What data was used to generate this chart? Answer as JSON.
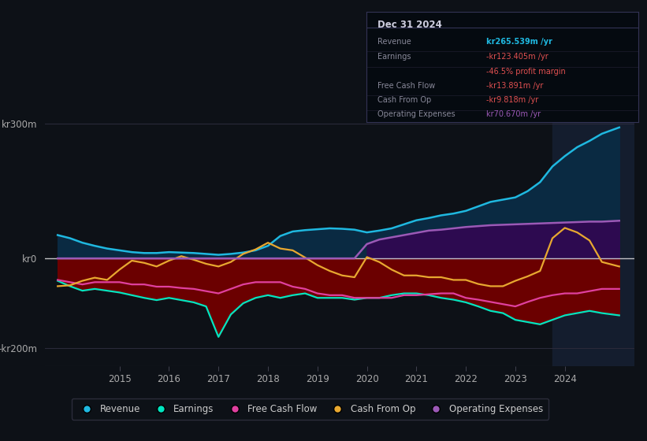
{
  "background_color": "#0d1117",
  "plot_bg_color": "#0d1117",
  "ytick_labels": [
    "kr300m",
    "kr0",
    "-kr200m"
  ],
  "ytick_values": [
    300,
    0,
    -200
  ],
  "ylim": [
    -240,
    350
  ],
  "xlim_start": 2013.5,
  "xlim_end": 2025.4,
  "xtick_years": [
    2015,
    2016,
    2017,
    2018,
    2019,
    2020,
    2021,
    2022,
    2023,
    2024
  ],
  "legend_items": [
    {
      "label": "Revenue",
      "color": "#1fb8e0"
    },
    {
      "label": "Earnings",
      "color": "#00e5c0"
    },
    {
      "label": "Free Cash Flow",
      "color": "#e0409f"
    },
    {
      "label": "Cash From Op",
      "color": "#e8a830"
    },
    {
      "label": "Operating Expenses",
      "color": "#9b59b6"
    }
  ],
  "info_box": {
    "date": "Dec 31 2024",
    "rows": [
      {
        "label": "Revenue",
        "value": "kr265.539m /yr",
        "value_color": "#1fb8e0"
      },
      {
        "label": "Earnings",
        "value": "-kr123.405m /yr",
        "value_color": "#e05050"
      },
      {
        "label": "",
        "value": "-46.5% profit margin",
        "value_color": "#e05050"
      },
      {
        "label": "Free Cash Flow",
        "value": "-kr13.891m /yr",
        "value_color": "#e05050"
      },
      {
        "label": "Cash From Op",
        "value": "-kr9.818m /yr",
        "value_color": "#e05050"
      },
      {
        "label": "Operating Expenses",
        "value": "kr70.670m /yr",
        "value_color": "#9b59b6"
      }
    ]
  },
  "revenue_x": [
    2013.75,
    2014.0,
    2014.25,
    2014.5,
    2014.75,
    2015.0,
    2015.25,
    2015.5,
    2015.75,
    2016.0,
    2016.25,
    2016.5,
    2016.75,
    2017.0,
    2017.25,
    2017.5,
    2017.75,
    2018.0,
    2018.25,
    2018.5,
    2018.75,
    2019.0,
    2019.25,
    2019.5,
    2019.75,
    2020.0,
    2020.25,
    2020.5,
    2020.75,
    2021.0,
    2021.25,
    2021.5,
    2021.75,
    2022.0,
    2022.25,
    2022.5,
    2022.75,
    2023.0,
    2023.25,
    2023.5,
    2023.75,
    2024.0,
    2024.25,
    2024.5,
    2024.75,
    2025.1
  ],
  "revenue_y": [
    52,
    45,
    35,
    28,
    22,
    18,
    14,
    12,
    12,
    14,
    13,
    12,
    10,
    8,
    10,
    13,
    18,
    28,
    50,
    60,
    63,
    65,
    67,
    66,
    64,
    58,
    62,
    67,
    76,
    85,
    90,
    96,
    100,
    106,
    116,
    126,
    131,
    136,
    150,
    170,
    205,
    228,
    248,
    262,
    278,
    292
  ],
  "earnings_x": [
    2013.75,
    2014.0,
    2014.25,
    2014.5,
    2014.75,
    2015.0,
    2015.25,
    2015.5,
    2015.75,
    2016.0,
    2016.25,
    2016.5,
    2016.75,
    2017.0,
    2017.25,
    2017.5,
    2017.75,
    2018.0,
    2018.25,
    2018.5,
    2018.75,
    2019.0,
    2019.25,
    2019.5,
    2019.75,
    2020.0,
    2020.25,
    2020.5,
    2020.75,
    2021.0,
    2021.25,
    2021.5,
    2021.75,
    2022.0,
    2022.25,
    2022.5,
    2022.75,
    2023.0,
    2023.25,
    2023.5,
    2023.75,
    2024.0,
    2024.25,
    2024.5,
    2024.75,
    2025.1
  ],
  "earnings_y": [
    -50,
    -62,
    -72,
    -68,
    -72,
    -76,
    -82,
    -88,
    -93,
    -88,
    -93,
    -98,
    -107,
    -175,
    -125,
    -100,
    -88,
    -82,
    -88,
    -82,
    -78,
    -88,
    -88,
    -88,
    -92,
    -88,
    -88,
    -82,
    -78,
    -78,
    -82,
    -88,
    -92,
    -98,
    -107,
    -117,
    -122,
    -137,
    -142,
    -147,
    -137,
    -127,
    -122,
    -117,
    -122,
    -127
  ],
  "fcf_x": [
    2013.75,
    2014.0,
    2014.25,
    2014.5,
    2014.75,
    2015.0,
    2015.25,
    2015.5,
    2015.75,
    2016.0,
    2016.25,
    2016.5,
    2016.75,
    2017.0,
    2017.25,
    2017.5,
    2017.75,
    2018.0,
    2018.25,
    2018.5,
    2018.75,
    2019.0,
    2019.25,
    2019.5,
    2019.75,
    2020.0,
    2020.25,
    2020.5,
    2020.75,
    2021.0,
    2021.25,
    2021.5,
    2021.75,
    2022.0,
    2022.25,
    2022.5,
    2022.75,
    2023.0,
    2023.25,
    2023.5,
    2023.75,
    2024.0,
    2024.25,
    2024.5,
    2024.75,
    2025.1
  ],
  "fcf_y": [
    -48,
    -53,
    -58,
    -53,
    -53,
    -53,
    -58,
    -58,
    -63,
    -63,
    -66,
    -68,
    -73,
    -78,
    -68,
    -58,
    -53,
    -53,
    -53,
    -63,
    -68,
    -78,
    -82,
    -82,
    -88,
    -88,
    -88,
    -88,
    -82,
    -82,
    -80,
    -78,
    -78,
    -88,
    -92,
    -97,
    -102,
    -107,
    -97,
    -88,
    -82,
    -78,
    -78,
    -73,
    -68,
    -68
  ],
  "cop_x": [
    2013.75,
    2014.0,
    2014.25,
    2014.5,
    2014.75,
    2015.0,
    2015.25,
    2015.5,
    2015.75,
    2016.0,
    2016.25,
    2016.5,
    2016.75,
    2017.0,
    2017.25,
    2017.5,
    2017.75,
    2018.0,
    2018.25,
    2018.5,
    2018.75,
    2019.0,
    2019.25,
    2019.5,
    2019.75,
    2020.0,
    2020.25,
    2020.5,
    2020.75,
    2021.0,
    2021.25,
    2021.5,
    2021.75,
    2022.0,
    2022.25,
    2022.5,
    2022.75,
    2023.0,
    2023.25,
    2023.5,
    2023.75,
    2024.0,
    2024.25,
    2024.5,
    2024.75,
    2025.1
  ],
  "cop_y": [
    -62,
    -60,
    -50,
    -43,
    -48,
    -25,
    -5,
    -10,
    -18,
    -5,
    5,
    -3,
    -12,
    -18,
    -8,
    10,
    20,
    35,
    22,
    18,
    2,
    -15,
    -28,
    -38,
    -42,
    3,
    -8,
    -25,
    -38,
    -38,
    -42,
    -42,
    -48,
    -48,
    -57,
    -62,
    -62,
    -50,
    -40,
    -28,
    45,
    68,
    58,
    40,
    -8,
    -18
  ],
  "opex_x": [
    2013.75,
    2014.0,
    2014.25,
    2014.5,
    2014.75,
    2015.0,
    2015.25,
    2015.5,
    2015.75,
    2016.0,
    2016.25,
    2016.5,
    2016.75,
    2017.0,
    2017.25,
    2017.5,
    2017.75,
    2018.0,
    2018.25,
    2018.5,
    2018.75,
    2019.0,
    2019.25,
    2019.5,
    2019.75,
    2020.0,
    2020.25,
    2020.5,
    2020.75,
    2021.0,
    2021.25,
    2021.5,
    2021.75,
    2022.0,
    2022.25,
    2022.5,
    2022.75,
    2023.0,
    2023.25,
    2023.5,
    2023.75,
    2024.0,
    2024.25,
    2024.5,
    2024.75,
    2025.1
  ],
  "opex_y": [
    0,
    0,
    0,
    0,
    0,
    0,
    0,
    0,
    0,
    0,
    0,
    0,
    0,
    0,
    0,
    0,
    0,
    0,
    0,
    0,
    0,
    0,
    0,
    0,
    0,
    32,
    42,
    47,
    52,
    57,
    62,
    64,
    67,
    70,
    72,
    74,
    75,
    76,
    77,
    78,
    79,
    80,
    81,
    82,
    82,
    84
  ],
  "highlight_x": 2023.75,
  "revenue_color": "#1fb8e0",
  "revenue_fill": "#0a2a42",
  "earnings_color": "#00e5c0",
  "earnings_fill_neg": "#6b0000",
  "fcf_color": "#e0409f",
  "cop_color": "#e8a830",
  "opex_color": "#9b59b6",
  "opex_fill": "#2d0a50"
}
